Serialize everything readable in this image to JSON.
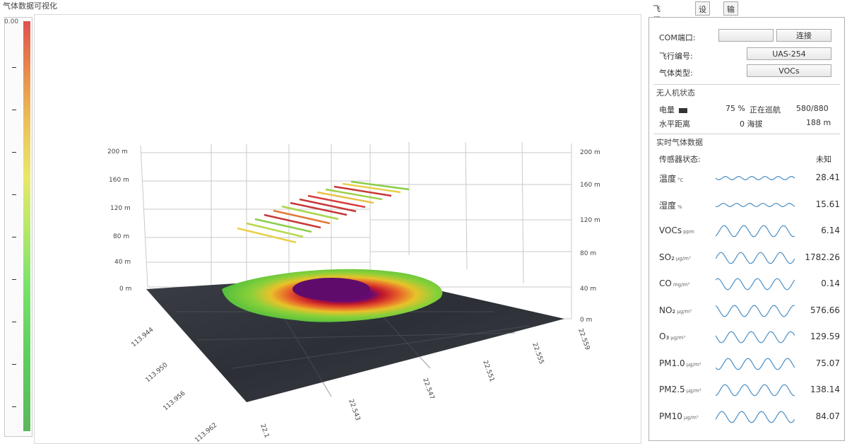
{
  "app": {
    "title": "气体数据可视化"
  },
  "colorbar": {
    "top_label": "0.00"
  },
  "plot": {
    "z_left_labels": [
      "200 m",
      "160 m",
      "120 m",
      "80 m",
      "40 m",
      "0 m"
    ],
    "z_right_labels": [
      "200 m",
      "160 m",
      "120 m",
      "80 m",
      "40 m",
      "0 m"
    ],
    "x_labels": [
      "113.962",
      "113.956",
      "113.950",
      "113.944"
    ],
    "y_labels": [
      "22.1",
      "22.543",
      "22.547",
      "22.551",
      "22.555",
      "22.559"
    ]
  },
  "tabs": [
    {
      "label": "飞行数据"
    },
    {
      "label": "设置"
    },
    {
      "label": "输出"
    }
  ],
  "panel": {
    "com_label": "COM端口:",
    "com_value": "",
    "connect_button": "连接",
    "flight_label": "飞行编号:",
    "flight_value": "UAS-254",
    "gas_type_label": "气体类型:",
    "gas_type_value": "VOCs",
    "drone_section": "无人机状态",
    "battery_label": "电量",
    "battery_value": "75 %",
    "mode_label": "正在巡航",
    "mode_value": "580/880",
    "hdist_label": "水平距离",
    "hdist_value": "0 海拔",
    "altitude_value": "188 m",
    "gas_section": "实时气体数据",
    "sensor_label": "传感器状态:",
    "sensor_value": "未知"
  },
  "gases": [
    {
      "name": "温度",
      "unit": "°C",
      "value": "28.41"
    },
    {
      "name": "湿度",
      "unit": "%",
      "value": "15.61"
    },
    {
      "name": "VOCs",
      "unit": "ppm",
      "value": "6.14"
    },
    {
      "name": "SO₂",
      "unit": "μg/m³",
      "value": "1782.26"
    },
    {
      "name": "CO",
      "unit": "mg/m³",
      "value": "0.14"
    },
    {
      "name": "NO₂",
      "unit": "μg/m³",
      "value": "576.66"
    },
    {
      "name": "O₃",
      "unit": "μg/m³",
      "value": "129.59"
    },
    {
      "name": "PM1.0",
      "unit": "μg/m³",
      "value": "75.07"
    },
    {
      "name": "PM2.5",
      "unit": "μg/m³",
      "value": "138.14"
    },
    {
      "name": "PM10",
      "unit": "μg/m³",
      "value": "84.07"
    }
  ],
  "colors": {
    "spark": "#4a8fc6",
    "panel_border": "#b0b0b0"
  }
}
